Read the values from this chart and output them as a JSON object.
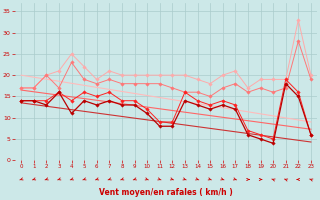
{
  "x": [
    0,
    1,
    2,
    3,
    4,
    5,
    6,
    7,
    8,
    9,
    10,
    11,
    12,
    13,
    14,
    15,
    16,
    17,
    18,
    19,
    20,
    21,
    22,
    23
  ],
  "series": [
    {
      "name": "line_light1",
      "color": "#ffaaaa",
      "lw": 0.7,
      "marker": "D",
      "markersize": 1.8,
      "y": [
        17,
        17,
        20,
        21,
        25,
        22,
        19,
        21,
        20,
        20,
        20,
        20,
        20,
        20,
        19,
        18,
        20,
        21,
        17,
        19,
        19,
        19,
        33,
        20
      ]
    },
    {
      "name": "line_light2",
      "color": "#ff7777",
      "lw": 0.7,
      "marker": "D",
      "markersize": 1.8,
      "y": [
        17,
        17,
        20,
        17,
        23,
        19,
        18,
        19,
        18,
        18,
        18,
        18,
        17,
        16,
        16,
        15,
        17,
        18,
        16,
        17,
        16,
        17,
        28,
        19
      ]
    },
    {
      "name": "line_dark1",
      "color": "#ff2222",
      "lw": 0.7,
      "marker": "D",
      "markersize": 1.8,
      "y": [
        14,
        14,
        14,
        16,
        14,
        16,
        15,
        16,
        14,
        14,
        12,
        9,
        9,
        16,
        14,
        13,
        14,
        13,
        7,
        6,
        5,
        19,
        16,
        6
      ]
    },
    {
      "name": "line_dark2",
      "color": "#bb0000",
      "lw": 0.9,
      "marker": "D",
      "markersize": 1.8,
      "y": [
        14,
        14,
        13,
        16,
        11,
        14,
        13,
        14,
        13,
        13,
        11,
        8,
        8,
        14,
        13,
        12,
        13,
        12,
        6,
        5,
        4,
        18,
        15,
        6
      ]
    },
    {
      "name": "trend_light",
      "color": "#ffbbbb",
      "lw": 0.8,
      "marker": null,
      "y": [
        20.0,
        19.522,
        19.043,
        18.565,
        18.087,
        17.609,
        17.13,
        16.652,
        16.174,
        15.696,
        15.217,
        14.739,
        14.261,
        13.783,
        13.304,
        12.826,
        12.348,
        11.87,
        11.391,
        10.913,
        10.435,
        9.957,
        9.478,
        9.0
      ]
    },
    {
      "name": "trend_mid",
      "color": "#ff6666",
      "lw": 0.8,
      "marker": null,
      "y": [
        16.5,
        16.1,
        15.7,
        15.3,
        14.9,
        14.5,
        14.1,
        13.7,
        13.3,
        12.9,
        12.5,
        12.1,
        11.7,
        11.3,
        10.9,
        10.5,
        10.1,
        9.7,
        9.3,
        8.9,
        8.5,
        8.1,
        7.7,
        7.3
      ]
    },
    {
      "name": "trend_dark",
      "color": "#cc3333",
      "lw": 0.8,
      "marker": null,
      "y": [
        13.5,
        13.1,
        12.7,
        12.3,
        11.9,
        11.5,
        11.1,
        10.7,
        10.3,
        9.9,
        9.5,
        9.1,
        8.7,
        8.3,
        7.9,
        7.5,
        7.1,
        6.7,
        6.3,
        5.9,
        5.5,
        5.1,
        4.7,
        4.3
      ]
    }
  ],
  "xlabel": "Vent moyen/en rafales ( km/h )",
  "ylim": [
    0,
    37
  ],
  "xlim": [
    -0.5,
    23.5
  ],
  "yticks": [
    0,
    5,
    10,
    15,
    20,
    25,
    30,
    35
  ],
  "xticks": [
    0,
    1,
    2,
    3,
    4,
    5,
    6,
    7,
    8,
    9,
    10,
    11,
    12,
    13,
    14,
    15,
    16,
    17,
    18,
    19,
    20,
    21,
    22,
    23
  ],
  "bg_color": "#cce8e8",
  "grid_color": "#aacccc",
  "tick_color": "#cc0000",
  "label_color": "#cc0000",
  "wind_angles_deg": [
    225,
    225,
    225,
    225,
    225,
    225,
    225,
    225,
    225,
    225,
    135,
    135,
    135,
    135,
    135,
    135,
    135,
    135,
    90,
    90,
    315,
    315,
    270,
    315
  ]
}
